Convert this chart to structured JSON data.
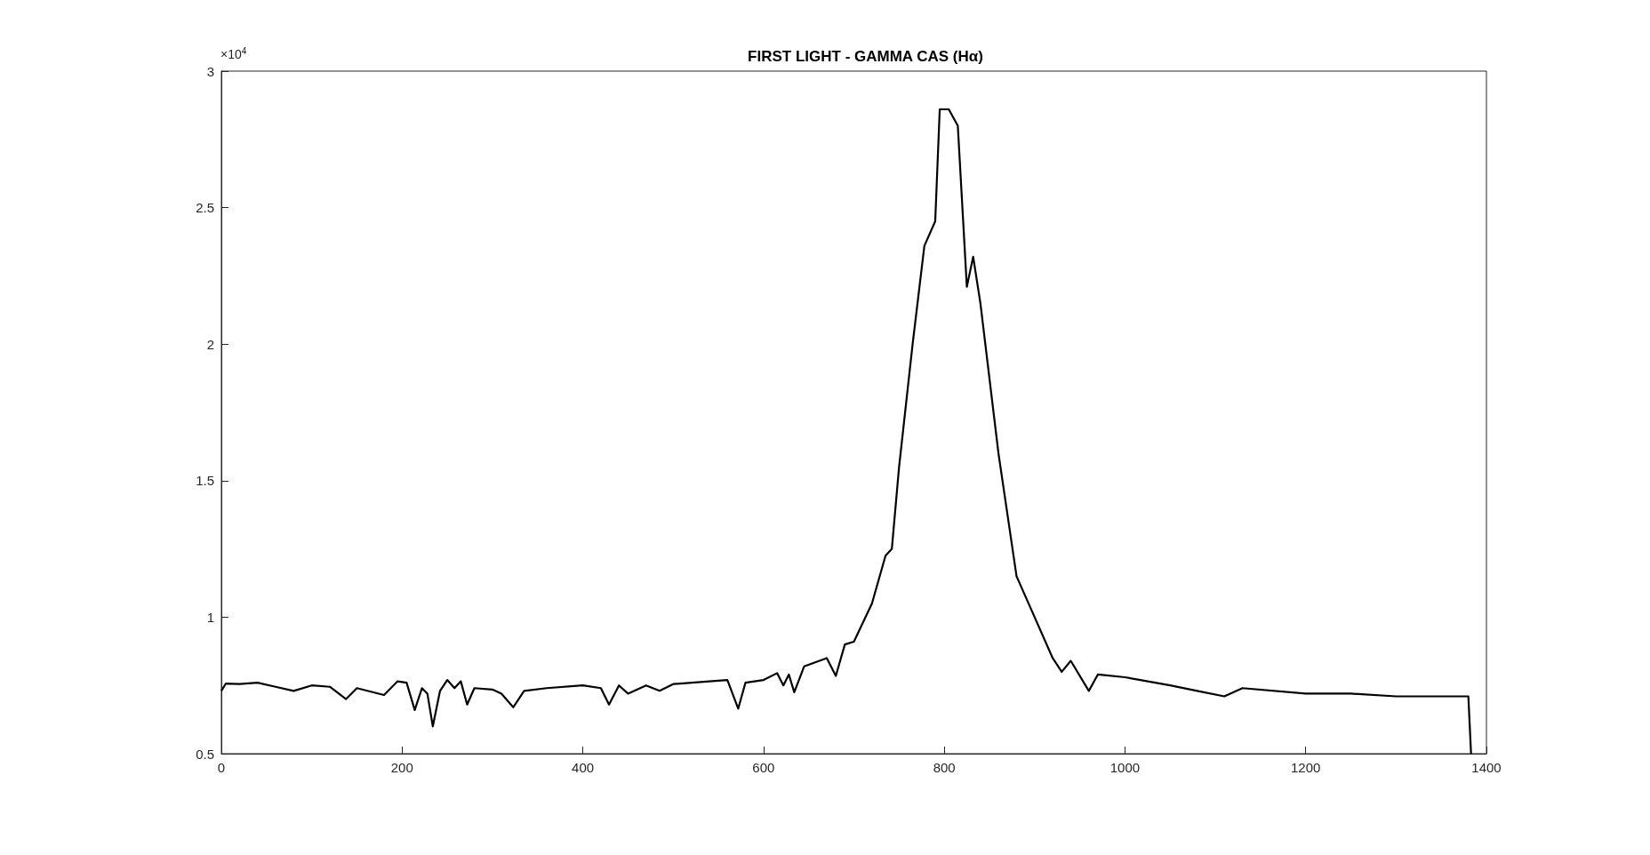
{
  "chart_data": {
    "type": "line",
    "title": "FIRST LIGHT - GAMMA CAS (Hα)",
    "annotations": [
      "×10$^{4}$"
    ],
    "x": [
      0,
      5,
      20,
      40,
      60,
      80,
      100,
      120,
      138,
      150,
      180,
      195,
      205,
      214,
      222,
      228,
      234,
      242,
      250,
      258,
      265,
      272,
      280,
      300,
      310,
      323,
      335,
      360,
      400,
      420,
      429,
      440,
      450,
      470,
      485,
      500,
      540,
      560,
      572,
      580,
      600,
      615,
      622,
      628,
      634,
      645,
      670,
      680,
      690,
      700,
      720,
      735,
      742,
      750,
      765,
      778,
      790,
      795,
      805,
      815,
      825,
      832,
      840,
      860,
      880,
      900,
      920,
      930,
      940,
      960,
      970,
      1000,
      1050,
      1080,
      1110,
      1130,
      1200,
      1250,
      1300,
      1380,
      1383
    ],
    "series": [
      {
        "color": "#000000",
        "values": [
          0.73,
          0.757,
          0.755,
          0.76,
          0.745,
          0.73,
          0.75,
          0.745,
          0.7,
          0.74,
          0.715,
          0.765,
          0.76,
          0.66,
          0.74,
          0.72,
          0.6,
          0.73,
          0.77,
          0.74,
          0.765,
          0.68,
          0.74,
          0.735,
          0.72,
          0.67,
          0.73,
          0.74,
          0.75,
          0.74,
          0.68,
          0.75,
          0.72,
          0.75,
          0.73,
          0.755,
          0.765,
          0.77,
          0.665,
          0.76,
          0.77,
          0.795,
          0.75,
          0.79,
          0.725,
          0.82,
          0.85,
          0.785,
          0.9,
          0.91,
          1.05,
          1.225,
          1.25,
          1.55,
          2.0,
          2.36,
          2.45,
          2.86,
          2.86,
          2.8,
          2.21,
          2.32,
          2.15,
          1.6,
          1.15,
          1.0,
          0.85,
          0.8,
          0.84,
          0.73,
          0.79,
          0.78,
          0.75,
          0.73,
          0.71,
          0.74,
          0.72,
          0.72,
          0.71,
          0.71,
          0.5
        ]
      }
    ],
    "xlim": [
      0,
      1400
    ],
    "xticks": [
      0,
      200,
      400,
      600,
      800,
      1000,
      1200,
      1400
    ],
    "ylim": [
      0.5,
      3
    ],
    "yticks": [
      0.5,
      1,
      1.5,
      2,
      2.5,
      3
    ],
    "grid": false,
    "marker": "none",
    "line_style": "solid"
  }
}
